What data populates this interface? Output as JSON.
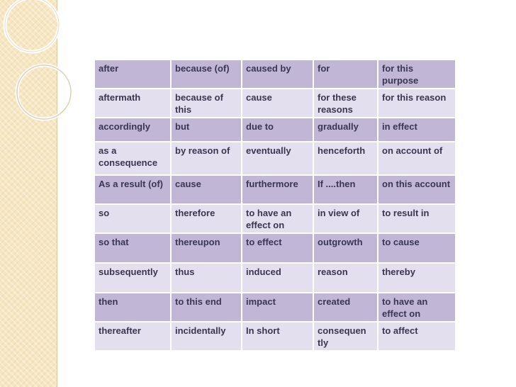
{
  "colors": {
    "dark_band": "#c2b6d7",
    "light_band": "#e4dfee",
    "text": "#3a3650",
    "side_strip": "#f6e7c2"
  },
  "rows": [
    [
      "after",
      "because (of)",
      "caused by",
      "for",
      "for this purpose"
    ],
    [
      "aftermath",
      "because of this",
      "cause",
      "for these reasons",
      "for this reason"
    ],
    [
      "accordingly",
      "but",
      "due to",
      "gradually",
      "in effect"
    ],
    [
      " as a consequence",
      "by reason of",
      "eventually",
      "henceforth",
      "on account of"
    ],
    [
      "As a result (of)",
      "cause",
      "furthermore",
      "If ....then",
      "on this account"
    ],
    [
      "so",
      "therefore",
      "to have an effect on",
      "in view of",
      "to result in"
    ],
    [
      "so that",
      "thereupon",
      "to effect",
      "outgrowth",
      "to cause"
    ],
    [
      "subsequently",
      "thus",
      "induced",
      "reason",
      "thereby"
    ],
    [
      "then",
      "to this end",
      "impact",
      "created",
      "to have an effect on"
    ],
    [
      "thereafter",
      "incidentally",
      "In short",
      "consequen tly",
      "to affect"
    ]
  ]
}
